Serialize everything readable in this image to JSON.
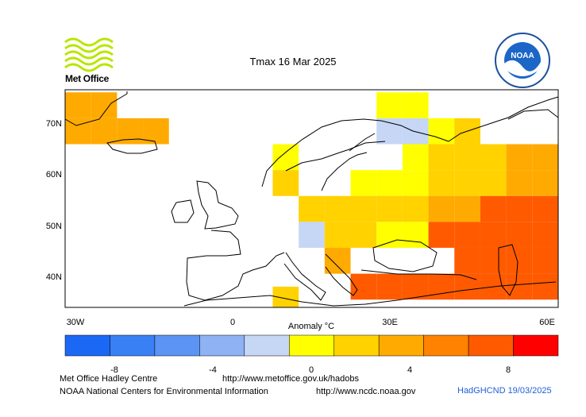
{
  "logo": {
    "org": "Met Office"
  },
  "chart_data": {
    "type": "heatmap",
    "title": "Tmax 16 Mar 2025",
    "colorbar_label": "Anomaly °C",
    "x_ticks": [
      "30W",
      "0",
      "30E",
      "60E"
    ],
    "y_ticks": [
      "70N",
      "60N",
      "50N",
      "40N"
    ],
    "lon_range": [
      -32.5,
      62.5
    ],
    "lat_range": [
      33.5,
      75.5
    ],
    "cell_size_deg": 5,
    "colorbar": {
      "ticks": [
        "-8",
        "-4",
        "0",
        "4",
        "8"
      ],
      "bounds": [
        -10,
        -8,
        -6,
        -4,
        -2,
        0,
        2,
        4,
        6,
        8,
        10
      ],
      "colors": [
        "#1b68f5",
        "#3a80f5",
        "#5c94f5",
        "#8fb2f5",
        "#c6d6f5",
        "#ffff00",
        "#ffd200",
        "#ffaa00",
        "#ff8200",
        "#ff5a00",
        "#ff0000"
      ]
    },
    "cells": [
      {
        "lon": -30,
        "lat": 72.5,
        "anom": 5
      },
      {
        "lon": -25,
        "lat": 72.5,
        "anom": 5
      },
      {
        "lon": -30,
        "lat": 67.5,
        "anom": 5
      },
      {
        "lon": -25,
        "lat": 67.5,
        "anom": 5
      },
      {
        "lon": -20,
        "lat": 67.5,
        "anom": 5
      },
      {
        "lon": -15,
        "lat": 67.5,
        "anom": 5
      },
      {
        "lon": 10,
        "lat": 62.5,
        "anom": 1
      },
      {
        "lon": 10,
        "lat": 57.5,
        "anom": 3
      },
      {
        "lon": 30,
        "lat": 72.5,
        "anom": 1
      },
      {
        "lon": 35,
        "lat": 72.5,
        "anom": 1
      },
      {
        "lon": 30,
        "lat": 67.5,
        "anom": -1
      },
      {
        "lon": 35,
        "lat": 67.5,
        "anom": -1
      },
      {
        "lon": 40,
        "lat": 67.5,
        "anom": 1
      },
      {
        "lon": 45,
        "lat": 67.5,
        "anom": 3
      },
      {
        "lon": 35,
        "lat": 62.5,
        "anom": 1
      },
      {
        "lon": 40,
        "lat": 62.5,
        "anom": 3
      },
      {
        "lon": 45,
        "lat": 62.5,
        "anom": 3
      },
      {
        "lon": 50,
        "lat": 62.5,
        "anom": 3
      },
      {
        "lon": 55,
        "lat": 62.5,
        "anom": 5
      },
      {
        "lon": 60,
        "lat": 62.5,
        "anom": 5
      },
      {
        "lon": 25,
        "lat": 57.5,
        "anom": 1
      },
      {
        "lon": 30,
        "lat": 57.5,
        "anom": 1
      },
      {
        "lon": 35,
        "lat": 57.5,
        "anom": 1
      },
      {
        "lon": 40,
        "lat": 57.5,
        "anom": 3
      },
      {
        "lon": 45,
        "lat": 57.5,
        "anom": 3
      },
      {
        "lon": 50,
        "lat": 57.5,
        "anom": 3
      },
      {
        "lon": 55,
        "lat": 57.5,
        "anom": 5
      },
      {
        "lon": 60,
        "lat": 57.5,
        "anom": 5
      },
      {
        "lon": 15,
        "lat": 52.5,
        "anom": 3
      },
      {
        "lon": 20,
        "lat": 52.5,
        "anom": 3
      },
      {
        "lon": 25,
        "lat": 52.5,
        "anom": 3
      },
      {
        "lon": 30,
        "lat": 52.5,
        "anom": 3
      },
      {
        "lon": 35,
        "lat": 52.5,
        "anom": 3
      },
      {
        "lon": 40,
        "lat": 52.5,
        "anom": 5
      },
      {
        "lon": 45,
        "lat": 52.5,
        "anom": 5
      },
      {
        "lon": 50,
        "lat": 52.5,
        "anom": 9
      },
      {
        "lon": 55,
        "lat": 52.5,
        "anom": 9
      },
      {
        "lon": 60,
        "lat": 52.5,
        "anom": 9
      },
      {
        "lon": 15,
        "lat": 47.5,
        "anom": -1
      },
      {
        "lon": 20,
        "lat": 47.5,
        "anom": 3
      },
      {
        "lon": 25,
        "lat": 47.5,
        "anom": 3
      },
      {
        "lon": 30,
        "lat": 47.5,
        "anom": 1
      },
      {
        "lon": 35,
        "lat": 47.5,
        "anom": 1
      },
      {
        "lon": 40,
        "lat": 47.5,
        "anom": 9
      },
      {
        "lon": 45,
        "lat": 47.5,
        "anom": 9
      },
      {
        "lon": 50,
        "lat": 47.5,
        "anom": 9
      },
      {
        "lon": 55,
        "lat": 47.5,
        "anom": 9
      },
      {
        "lon": 60,
        "lat": 47.5,
        "anom": 9
      },
      {
        "lon": 20,
        "lat": 42.5,
        "anom": 5
      },
      {
        "lon": 45,
        "lat": 42.5,
        "anom": 9
      },
      {
        "lon": 50,
        "lat": 42.5,
        "anom": 9
      },
      {
        "lon": 55,
        "lat": 42.5,
        "anom": 9
      },
      {
        "lon": 60,
        "lat": 42.5,
        "anom": 9
      },
      {
        "lon": 25,
        "lat": 37.5,
        "anom": 9
      },
      {
        "lon": 30,
        "lat": 37.5,
        "anom": 9
      },
      {
        "lon": 35,
        "lat": 37.5,
        "anom": 9
      },
      {
        "lon": 40,
        "lat": 37.5,
        "anom": 9
      },
      {
        "lon": 45,
        "lat": 37.5,
        "anom": 9
      },
      {
        "lon": 50,
        "lat": 37.5,
        "anom": 9
      },
      {
        "lon": 55,
        "lat": 37.5,
        "anom": 9
      },
      {
        "lon": 60,
        "lat": 37.5,
        "anom": 9
      },
      {
        "lon": 10,
        "lat": 35,
        "anom": 3
      }
    ]
  },
  "footer": {
    "org1": "Met Office Hadley Centre",
    "url1": "http://www.metoffice.gov.uk/hadobs",
    "org2": "NOAA National Centers for Environmental Information",
    "url2": "http://www.ncdc.noaa.gov",
    "credit": "HadGHCND 19/03/2025"
  }
}
